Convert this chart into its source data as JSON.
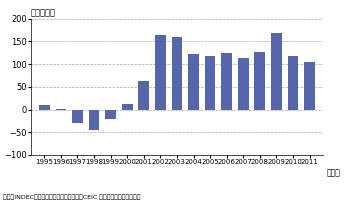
{
  "years": [
    1995,
    1996,
    1997,
    1998,
    1999,
    2000,
    2001,
    2002,
    2003,
    2004,
    2005,
    2006,
    2007,
    2008,
    2009,
    2010,
    2011
  ],
  "values": [
    10,
    1,
    -30,
    -45,
    -20,
    12,
    62,
    165,
    160,
    122,
    118,
    125,
    113,
    126,
    168,
    117,
    105
  ],
  "bar_color": "#5566aa",
  "ylim": [
    -100,
    200
  ],
  "yticks": [
    -100,
    -50,
    0,
    50,
    100,
    150,
    200
  ],
  "ylabel": "（億ドル）",
  "xlabel_end": "（年）",
  "source": "資料：INDEC（国家統計局センサス局）、CEIC データベースから作成。",
  "grid_color": "#aaaaaa",
  "bg_color": "#ffffff",
  "bar_width": 0.65
}
